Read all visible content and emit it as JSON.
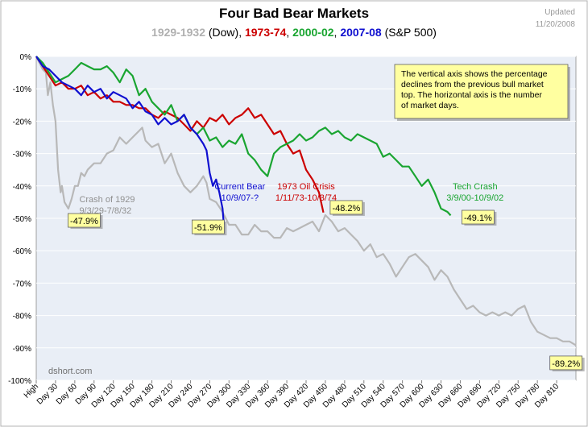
{
  "chart_data": {
    "type": "line",
    "title": "Four Bad Bear Markets",
    "subtitle_parts": [
      {
        "text": "1929-1932",
        "color": "#b0b0b0"
      },
      {
        "text": " (Dow), ",
        "color": "#000000"
      },
      {
        "text": "1973-74",
        "color": "#cc0000"
      },
      {
        "text": ", ",
        "color": "#000000"
      },
      {
        "text": "2000-02",
        "color": "#1aa531"
      },
      {
        "text": ", ",
        "color": "#000000"
      },
      {
        "text": "2007-08",
        "color": "#1010d0"
      },
      {
        "text": " (S&P 500)",
        "color": "#000000"
      }
    ],
    "updated_line1": "Updated",
    "updated_line2": "11/20/2008",
    "source": "dshort.com",
    "xlim": [
      0,
      840
    ],
    "ylim": [
      -100,
      0
    ],
    "grid": true,
    "x_tick_labels": [
      "High",
      "Day 30",
      "Day 60",
      "Day 90",
      "Day 120",
      "Day 150",
      "Day 180",
      "Day 210",
      "Day 240",
      "Day 270",
      "Day 300",
      "Day 330",
      "Day 360",
      "Day 390",
      "Day 420",
      "Day 450",
      "Day 480",
      "Day 510",
      "Day 540",
      "Day 570",
      "Day 600",
      "Day 630",
      "Day 660",
      "Day 690",
      "Day 720",
      "Day 750",
      "Day 780",
      "Day 810"
    ],
    "y_ticks": [
      0,
      -10,
      -20,
      -30,
      -40,
      -50,
      -60,
      -70,
      -80,
      -90,
      -100
    ],
    "y_tick_labels": [
      "0%",
      "-10%",
      "-20%",
      "-30%",
      "-40%",
      "-50%",
      "-60%",
      "-70%",
      "-80%",
      "-90%",
      "-100%"
    ],
    "info_box": [
      "The vertical axis shows the percentage",
      "declines from the previous bull market",
      "top. The horizontal axis is the number",
      "of market days."
    ],
    "series": [
      {
        "key": "dow1929",
        "color": "#b8b8b8",
        "x": [
          0,
          5,
          10,
          15,
          18,
          22,
          26,
          30,
          34,
          38,
          40,
          44,
          50,
          55,
          60,
          65,
          70,
          75,
          80,
          90,
          100,
          110,
          120,
          130,
          140,
          150,
          160,
          165,
          170,
          180,
          190,
          200,
          210,
          220,
          230,
          240,
          250,
          260,
          265,
          270,
          280,
          290,
          300,
          310,
          320,
          330,
          340,
          350,
          360,
          370,
          380,
          390,
          400,
          410,
          420,
          430,
          440,
          450,
          460,
          470,
          480,
          490,
          500,
          510,
          520,
          530,
          540,
          550,
          560,
          570,
          580,
          590,
          600,
          610,
          620,
          630,
          640,
          650,
          660,
          670,
          680,
          690,
          700,
          710,
          720,
          730,
          740,
          750,
          760,
          770,
          780,
          790,
          800,
          810,
          820,
          830,
          840
        ],
        "y": [
          0,
          -2,
          -4,
          -5,
          -12,
          -8,
          -15,
          -20,
          -35,
          -42,
          -40,
          -45,
          -47,
          -44,
          -40,
          -40,
          -36,
          -37,
          -35,
          -33,
          -33,
          -30,
          -29,
          -25,
          -27,
          -25,
          -23,
          -22,
          -26,
          -28,
          -27,
          -33,
          -30,
          -36,
          -40,
          -42,
          -40,
          -37,
          -39,
          -44,
          -45,
          -48,
          -52,
          -52,
          -55,
          -55,
          -52,
          -54,
          -54,
          -56,
          -56,
          -53,
          -54,
          -53,
          -52,
          -51,
          -54,
          -49,
          -51,
          -54,
          -53,
          -55,
          -57,
          -60,
          -58,
          -62,
          -61,
          -64,
          -68,
          -65,
          -62,
          -61,
          -63,
          -65,
          -69,
          -66,
          -68,
          -72,
          -75,
          -78,
          -77,
          -79,
          -80,
          -79,
          -80,
          -79,
          -80,
          -78,
          -77,
          -82,
          -85,
          -86,
          -87,
          -87,
          -88,
          -88,
          -89.2
        ]
      },
      {
        "key": "oil1973",
        "color": "#cc0000",
        "x": [
          0,
          10,
          20,
          30,
          40,
          50,
          60,
          70,
          80,
          90,
          100,
          110,
          120,
          130,
          140,
          150,
          160,
          170,
          180,
          190,
          200,
          210,
          220,
          230,
          240,
          250,
          260,
          270,
          280,
          290,
          300,
          310,
          320,
          330,
          340,
          350,
          360,
          370,
          380,
          390,
          400,
          410,
          420,
          430,
          440,
          447
        ],
        "y": [
          0,
          -3,
          -6,
          -9,
          -8,
          -10,
          -10,
          -9,
          -12,
          -11,
          -13,
          -12,
          -14,
          -14,
          -15,
          -15,
          -16,
          -16,
          -18,
          -19,
          -17,
          -18,
          -19,
          -21,
          -23,
          -20,
          -22,
          -19,
          -20,
          -18,
          -21,
          -19,
          -18,
          -16,
          -19,
          -18,
          -21,
          -24,
          -23,
          -27,
          -30,
          -29,
          -35,
          -38,
          -42,
          -48.2
        ]
      },
      {
        "key": "tech2000",
        "color": "#1aa531",
        "x": [
          0,
          10,
          20,
          30,
          40,
          50,
          60,
          70,
          80,
          90,
          100,
          110,
          120,
          130,
          140,
          150,
          160,
          170,
          180,
          190,
          200,
          210,
          220,
          230,
          240,
          250,
          260,
          270,
          280,
          290,
          300,
          310,
          320,
          330,
          340,
          350,
          360,
          370,
          380,
          390,
          400,
          410,
          420,
          430,
          440,
          450,
          460,
          470,
          480,
          490,
          500,
          510,
          520,
          530,
          540,
          550,
          560,
          570,
          580,
          590,
          600,
          610,
          620,
          630,
          640,
          645
        ],
        "y": [
          0,
          -2,
          -5,
          -8,
          -7,
          -6,
          -4,
          -2,
          -3,
          -4,
          -4,
          -3,
          -5,
          -8,
          -4,
          -6,
          -12,
          -10,
          -14,
          -16,
          -18,
          -15,
          -20,
          -18,
          -22,
          -24,
          -22,
          -26,
          -25,
          -28,
          -26,
          -27,
          -24,
          -30,
          -32,
          -35,
          -37,
          -30,
          -28,
          -27,
          -26,
          -24,
          -26,
          -25,
          -23,
          -22,
          -24,
          -23,
          -25,
          -26,
          -24,
          -25,
          -26,
          -27,
          -31,
          -30,
          -32,
          -34,
          -34,
          -37,
          -40,
          -38,
          -42,
          -47,
          -48,
          -49.1
        ]
      },
      {
        "key": "bear2007",
        "color": "#1010d0",
        "x": [
          0,
          10,
          20,
          30,
          40,
          50,
          60,
          70,
          80,
          90,
          100,
          110,
          120,
          130,
          140,
          150,
          160,
          170,
          180,
          190,
          200,
          210,
          220,
          230,
          240,
          250,
          260,
          265,
          270,
          275,
          280,
          285,
          290,
          292
        ],
        "y": [
          0,
          -3,
          -4,
          -6,
          -8,
          -9,
          -10,
          -12,
          -9,
          -11,
          -10,
          -13,
          -11,
          -12,
          -13,
          -16,
          -14,
          -17,
          -18,
          -21,
          -19,
          -21,
          -20,
          -18,
          -22,
          -24,
          -27,
          -29,
          -36,
          -40,
          -38,
          -42,
          -47,
          -51.9
        ]
      }
    ],
    "annotations": [
      {
        "lines": [
          "Crash of 1929",
          "9/3/29-7/8/32"
        ],
        "color": "#909090",
        "x": 67,
        "y": -45,
        "anchor": "start"
      },
      {
        "lines": [
          "Current Bear",
          "10/9/07-?"
        ],
        "color": "#1010d0",
        "x": 317,
        "y": -41,
        "anchor": "middle"
      },
      {
        "lines": [
          "1973 Oil Crisis",
          "1/11/73-10/3/74"
        ],
        "color": "#cc0000",
        "x": 420,
        "y": -41,
        "anchor": "middle"
      },
      {
        "lines": [
          "Tech Crash",
          "3/9/00-10/9/02"
        ],
        "color": "#1aa531",
        "x": 683,
        "y": -41,
        "anchor": "middle"
      }
    ],
    "callouts": [
      {
        "text": "-47.9%",
        "x": 52,
        "y": -52
      },
      {
        "text": "-51.9%",
        "x": 245,
        "y": -54
      },
      {
        "text": "-48.2%",
        "x": 460,
        "y": -48
      },
      {
        "text": "-49.1%",
        "x": 665,
        "y": -51
      },
      {
        "text": "-89.2%",
        "x": 802,
        "y": -96
      }
    ]
  }
}
